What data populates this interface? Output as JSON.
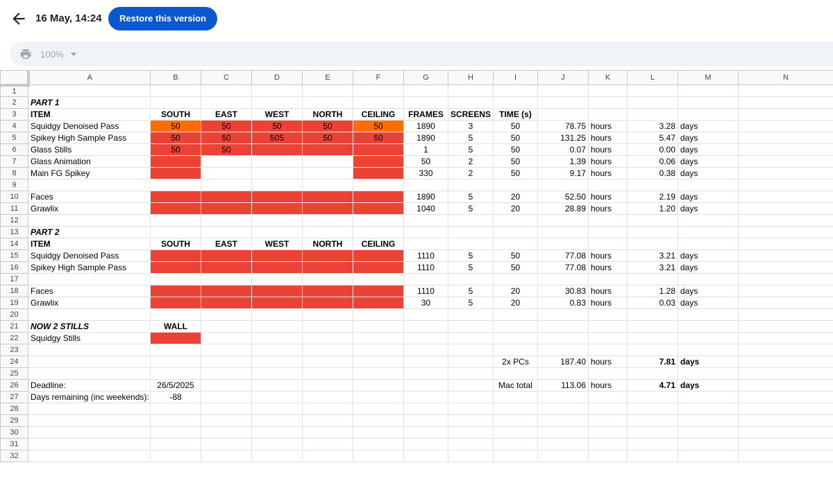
{
  "header": {
    "version_title": "16 May, 14:24",
    "restore_label": "Restore this version"
  },
  "toolbar": {
    "zoom": "100%"
  },
  "columns": [
    "A",
    "B",
    "C",
    "D",
    "E",
    "F",
    "G",
    "H",
    "I",
    "J",
    "K",
    "L",
    "M",
    "N"
  ],
  "colors": {
    "red": "#ea4335",
    "orange": "#ff6d01",
    "accent": "#0b57d0"
  },
  "rows": [
    {
      "n": "1",
      "cells": []
    },
    {
      "n": "2",
      "cells": [
        {
          "c": 0,
          "v": "PART 1",
          "s": "bi"
        }
      ]
    },
    {
      "n": "3",
      "cells": [
        {
          "c": 0,
          "v": "ITEM",
          "s": "b"
        },
        {
          "c": 1,
          "v": "SOUTH",
          "s": "b c"
        },
        {
          "c": 2,
          "v": "EAST",
          "s": "b c"
        },
        {
          "c": 3,
          "v": "WEST",
          "s": "b c"
        },
        {
          "c": 4,
          "v": "NORTH",
          "s": "b c"
        },
        {
          "c": 5,
          "v": "CEILING",
          "s": "b c"
        },
        {
          "c": 6,
          "v": "FRAMES",
          "s": "b c"
        },
        {
          "c": 7,
          "v": "SCREENS",
          "s": "b c"
        },
        {
          "c": 8,
          "v": "TIME (s)",
          "s": "b c"
        }
      ]
    },
    {
      "n": "4",
      "cells": [
        {
          "c": 0,
          "v": "Squidgy Denoised Pass"
        },
        {
          "c": 1,
          "v": "50",
          "s": "c",
          "bg": "orange"
        },
        {
          "c": 2,
          "v": "50",
          "s": "c",
          "bg": "red"
        },
        {
          "c": 3,
          "v": "50",
          "s": "c",
          "bg": "red"
        },
        {
          "c": 4,
          "v": "50",
          "s": "c",
          "bg": "red"
        },
        {
          "c": 5,
          "v": "50",
          "s": "c",
          "bg": "orange"
        },
        {
          "c": 6,
          "v": "1890",
          "s": "c"
        },
        {
          "c": 7,
          "v": "3",
          "s": "c"
        },
        {
          "c": 8,
          "v": "50",
          "s": "c"
        },
        {
          "c": 9,
          "v": "78.75",
          "s": "r"
        },
        {
          "c": 10,
          "v": "hours"
        },
        {
          "c": 11,
          "v": "3.28",
          "s": "r"
        },
        {
          "c": 12,
          "v": "days"
        }
      ]
    },
    {
      "n": "5",
      "cells": [
        {
          "c": 0,
          "v": "Spikey High Sample Pass"
        },
        {
          "c": 1,
          "v": "50",
          "s": "c",
          "bg": "red"
        },
        {
          "c": 2,
          "v": "50",
          "s": "c",
          "bg": "red"
        },
        {
          "c": 3,
          "v": "505",
          "s": "c",
          "bg": "red"
        },
        {
          "c": 4,
          "v": "50",
          "s": "c",
          "bg": "red"
        },
        {
          "c": 5,
          "v": "50",
          "s": "c",
          "bg": "red"
        },
        {
          "c": 6,
          "v": "1890",
          "s": "c"
        },
        {
          "c": 7,
          "v": "5",
          "s": "c"
        },
        {
          "c": 8,
          "v": "50",
          "s": "c"
        },
        {
          "c": 9,
          "v": "131.25",
          "s": "r"
        },
        {
          "c": 10,
          "v": "hours"
        },
        {
          "c": 11,
          "v": "5.47",
          "s": "r"
        },
        {
          "c": 12,
          "v": "days"
        }
      ]
    },
    {
      "n": "6",
      "cells": [
        {
          "c": 0,
          "v": "Glass Stills"
        },
        {
          "c": 1,
          "v": "50",
          "s": "c",
          "bg": "red"
        },
        {
          "c": 2,
          "v": "50",
          "s": "c",
          "bg": "red"
        },
        {
          "c": 3,
          "v": "",
          "bg": "red"
        },
        {
          "c": 4,
          "v": "",
          "bg": "red"
        },
        {
          "c": 5,
          "v": "",
          "bg": "red"
        },
        {
          "c": 6,
          "v": "1",
          "s": "c"
        },
        {
          "c": 7,
          "v": "5",
          "s": "c"
        },
        {
          "c": 8,
          "v": "50",
          "s": "c"
        },
        {
          "c": 9,
          "v": "0.07",
          "s": "r"
        },
        {
          "c": 10,
          "v": "hours"
        },
        {
          "c": 11,
          "v": "0.00",
          "s": "r"
        },
        {
          "c": 12,
          "v": "days"
        }
      ]
    },
    {
      "n": "7",
      "cells": [
        {
          "c": 0,
          "v": "Glass Animation"
        },
        {
          "c": 1,
          "v": "",
          "bg": "red"
        },
        {
          "c": 5,
          "v": "",
          "bg": "red"
        },
        {
          "c": 6,
          "v": "50",
          "s": "c"
        },
        {
          "c": 7,
          "v": "2",
          "s": "c"
        },
        {
          "c": 8,
          "v": "50",
          "s": "c"
        },
        {
          "c": 9,
          "v": "1.39",
          "s": "r"
        },
        {
          "c": 10,
          "v": "hours"
        },
        {
          "c": 11,
          "v": "0.06",
          "s": "r"
        },
        {
          "c": 12,
          "v": "days"
        }
      ]
    },
    {
      "n": "8",
      "cells": [
        {
          "c": 0,
          "v": "Main FG Spikey"
        },
        {
          "c": 1,
          "v": "",
          "bg": "red"
        },
        {
          "c": 5,
          "v": "",
          "bg": "red"
        },
        {
          "c": 6,
          "v": "330",
          "s": "c"
        },
        {
          "c": 7,
          "v": "2",
          "s": "c"
        },
        {
          "c": 8,
          "v": "50",
          "s": "c"
        },
        {
          "c": 9,
          "v": "9.17",
          "s": "r"
        },
        {
          "c": 10,
          "v": "hours"
        },
        {
          "c": 11,
          "v": "0.38",
          "s": "r"
        },
        {
          "c": 12,
          "v": "days"
        }
      ]
    },
    {
      "n": "9",
      "cells": []
    },
    {
      "n": "10",
      "cells": [
        {
          "c": 0,
          "v": "Faces"
        },
        {
          "c": 1,
          "v": "",
          "bg": "red"
        },
        {
          "c": 2,
          "v": "",
          "bg": "red"
        },
        {
          "c": 3,
          "v": "",
          "bg": "red"
        },
        {
          "c": 4,
          "v": "",
          "bg": "red"
        },
        {
          "c": 5,
          "v": "",
          "bg": "red"
        },
        {
          "c": 6,
          "v": "1890",
          "s": "c"
        },
        {
          "c": 7,
          "v": "5",
          "s": "c"
        },
        {
          "c": 8,
          "v": "20",
          "s": "c"
        },
        {
          "c": 9,
          "v": "52.50",
          "s": "r"
        },
        {
          "c": 10,
          "v": "hours"
        },
        {
          "c": 11,
          "v": "2.19",
          "s": "r"
        },
        {
          "c": 12,
          "v": "days"
        }
      ]
    },
    {
      "n": "11",
      "cells": [
        {
          "c": 0,
          "v": "Grawlix"
        },
        {
          "c": 1,
          "v": "",
          "bg": "red"
        },
        {
          "c": 2,
          "v": "",
          "bg": "red"
        },
        {
          "c": 3,
          "v": "",
          "bg": "red"
        },
        {
          "c": 4,
          "v": "",
          "bg": "red"
        },
        {
          "c": 5,
          "v": "",
          "bg": "red"
        },
        {
          "c": 6,
          "v": "1040",
          "s": "c"
        },
        {
          "c": 7,
          "v": "5",
          "s": "c"
        },
        {
          "c": 8,
          "v": "20",
          "s": "c"
        },
        {
          "c": 9,
          "v": "28.89",
          "s": "r"
        },
        {
          "c": 10,
          "v": "hours"
        },
        {
          "c": 11,
          "v": "1.20",
          "s": "r"
        },
        {
          "c": 12,
          "v": "days"
        }
      ]
    },
    {
      "n": "12",
      "cells": []
    },
    {
      "n": "13",
      "cells": [
        {
          "c": 0,
          "v": "PART 2",
          "s": "bi"
        }
      ]
    },
    {
      "n": "14",
      "cells": [
        {
          "c": 0,
          "v": "ITEM",
          "s": "b"
        },
        {
          "c": 1,
          "v": "SOUTH",
          "s": "b c"
        },
        {
          "c": 2,
          "v": "EAST",
          "s": "b c"
        },
        {
          "c": 3,
          "v": "WEST",
          "s": "b c"
        },
        {
          "c": 4,
          "v": "NORTH",
          "s": "b c"
        },
        {
          "c": 5,
          "v": "CEILING",
          "s": "b c"
        }
      ]
    },
    {
      "n": "15",
      "cells": [
        {
          "c": 0,
          "v": "Squidgy Denoised Pass"
        },
        {
          "c": 1,
          "v": "",
          "bg": "red"
        },
        {
          "c": 2,
          "v": "",
          "bg": "red"
        },
        {
          "c": 3,
          "v": "",
          "bg": "red"
        },
        {
          "c": 4,
          "v": "",
          "bg": "red"
        },
        {
          "c": 5,
          "v": "",
          "bg": "red"
        },
        {
          "c": 6,
          "v": "1110",
          "s": "c"
        },
        {
          "c": 7,
          "v": "5",
          "s": "c"
        },
        {
          "c": 8,
          "v": "50",
          "s": "c"
        },
        {
          "c": 9,
          "v": "77.08",
          "s": "r"
        },
        {
          "c": 10,
          "v": "hours"
        },
        {
          "c": 11,
          "v": "3.21",
          "s": "r"
        },
        {
          "c": 12,
          "v": "days"
        }
      ]
    },
    {
      "n": "16",
      "cells": [
        {
          "c": 0,
          "v": "Spikey High Sample Pass"
        },
        {
          "c": 1,
          "v": "",
          "bg": "red"
        },
        {
          "c": 2,
          "v": "",
          "bg": "red"
        },
        {
          "c": 3,
          "v": "",
          "bg": "red"
        },
        {
          "c": 4,
          "v": "",
          "bg": "red"
        },
        {
          "c": 5,
          "v": "",
          "bg": "red"
        },
        {
          "c": 6,
          "v": "1110",
          "s": "c"
        },
        {
          "c": 7,
          "v": "5",
          "s": "c"
        },
        {
          "c": 8,
          "v": "50",
          "s": "c"
        },
        {
          "c": 9,
          "v": "77.08",
          "s": "r"
        },
        {
          "c": 10,
          "v": "hours"
        },
        {
          "c": 11,
          "v": "3.21",
          "s": "r"
        },
        {
          "c": 12,
          "v": "days"
        }
      ]
    },
    {
      "n": "17",
      "cells": []
    },
    {
      "n": "18",
      "cells": [
        {
          "c": 0,
          "v": "Faces"
        },
        {
          "c": 1,
          "v": "",
          "bg": "red"
        },
        {
          "c": 2,
          "v": "",
          "bg": "red"
        },
        {
          "c": 3,
          "v": "",
          "bg": "red"
        },
        {
          "c": 4,
          "v": "",
          "bg": "red"
        },
        {
          "c": 5,
          "v": "",
          "bg": "red"
        },
        {
          "c": 6,
          "v": "1110",
          "s": "c"
        },
        {
          "c": 7,
          "v": "5",
          "s": "c"
        },
        {
          "c": 8,
          "v": "20",
          "s": "c"
        },
        {
          "c": 9,
          "v": "30.83",
          "s": "r"
        },
        {
          "c": 10,
          "v": "hours"
        },
        {
          "c": 11,
          "v": "1.28",
          "s": "r"
        },
        {
          "c": 12,
          "v": "days"
        }
      ]
    },
    {
      "n": "19",
      "cells": [
        {
          "c": 0,
          "v": "Grawlix"
        },
        {
          "c": 1,
          "v": "",
          "bg": "red"
        },
        {
          "c": 2,
          "v": "",
          "bg": "red"
        },
        {
          "c": 3,
          "v": "",
          "bg": "red"
        },
        {
          "c": 4,
          "v": "",
          "bg": "red"
        },
        {
          "c": 5,
          "v": "",
          "bg": "red"
        },
        {
          "c": 6,
          "v": "30",
          "s": "c"
        },
        {
          "c": 7,
          "v": "5",
          "s": "c"
        },
        {
          "c": 8,
          "v": "20",
          "s": "c"
        },
        {
          "c": 9,
          "v": "0.83",
          "s": "r"
        },
        {
          "c": 10,
          "v": "hours"
        },
        {
          "c": 11,
          "v": "0.03",
          "s": "r"
        },
        {
          "c": 12,
          "v": "days"
        }
      ]
    },
    {
      "n": "20",
      "cells": []
    },
    {
      "n": "21",
      "cells": [
        {
          "c": 0,
          "v": "NOW 2 STILLS",
          "s": "bi"
        },
        {
          "c": 1,
          "v": "WALL",
          "s": "b c"
        }
      ]
    },
    {
      "n": "22",
      "cells": [
        {
          "c": 0,
          "v": "Squidgy Stills"
        },
        {
          "c": 1,
          "v": "",
          "bg": "red"
        }
      ]
    },
    {
      "n": "23",
      "cells": []
    },
    {
      "n": "24",
      "cells": [
        {
          "c": 8,
          "v": "2x PCs",
          "s": "c"
        },
        {
          "c": 9,
          "v": "187.40",
          "s": "r"
        },
        {
          "c": 10,
          "v": "hours"
        },
        {
          "c": 11,
          "v": "7.81",
          "s": "r b"
        },
        {
          "c": 12,
          "v": "days",
          "s": "b"
        }
      ]
    },
    {
      "n": "25",
      "cells": []
    },
    {
      "n": "26",
      "cells": [
        {
          "c": 0,
          "v": "Deadline:"
        },
        {
          "c": 1,
          "v": "26/5/2025",
          "s": "c"
        },
        {
          "c": 8,
          "v": "Mac total",
          "s": "c"
        },
        {
          "c": 9,
          "v": "113.06",
          "s": "r"
        },
        {
          "c": 10,
          "v": "hours"
        },
        {
          "c": 11,
          "v": "4.71",
          "s": "r b"
        },
        {
          "c": 12,
          "v": "days",
          "s": "b"
        }
      ]
    },
    {
      "n": "27",
      "cells": [
        {
          "c": 0,
          "v": "Days remaining (inc weekends):"
        },
        {
          "c": 1,
          "v": "-88",
          "s": "c"
        }
      ]
    },
    {
      "n": "28",
      "cells": []
    },
    {
      "n": "29",
      "cells": []
    },
    {
      "n": "30",
      "cells": []
    },
    {
      "n": "31",
      "cells": []
    },
    {
      "n": "32",
      "cells": []
    }
  ]
}
